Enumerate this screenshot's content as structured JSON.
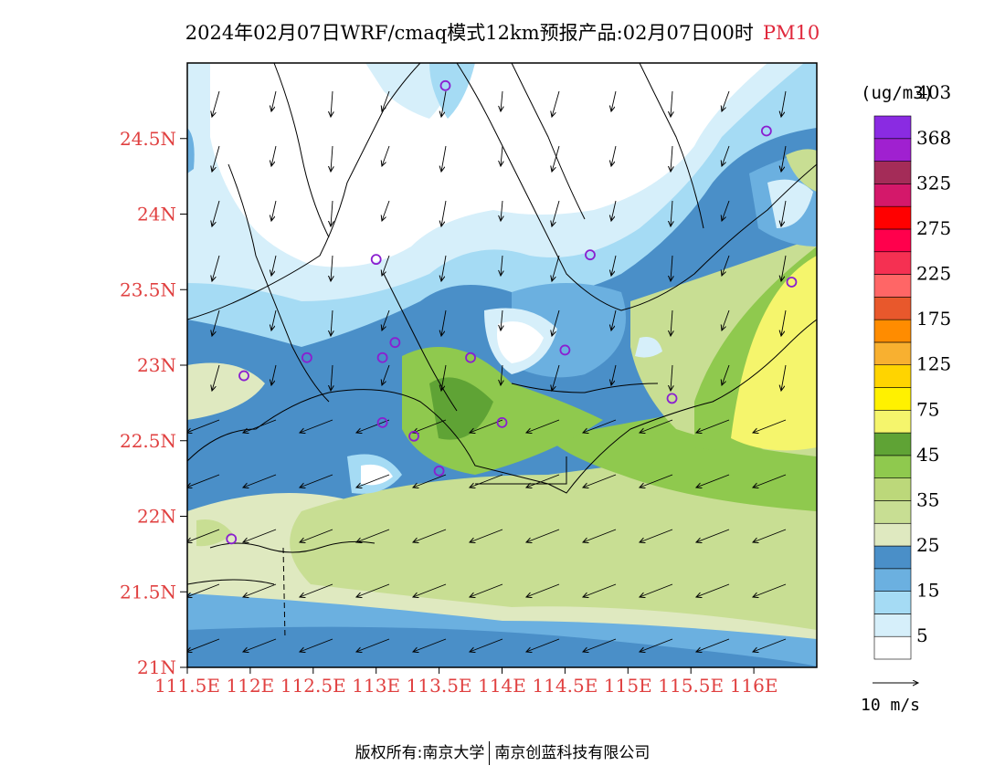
{
  "title": {
    "main": "2024年02月07日WRF/cmaq模式12km预报产品:02月07日00时",
    "pollutant": "PM10"
  },
  "map": {
    "lat_labels": [
      "24.5N",
      "24N",
      "23.5N",
      "23N",
      "22.5N",
      "22N",
      "21.5N",
      "21N"
    ],
    "lat_values": [
      24.5,
      24,
      23.5,
      23,
      22.5,
      22,
      21.5,
      21
    ],
    "lon_labels": [
      "111.5E",
      "112E",
      "112.5E",
      "113E",
      "113.5E",
      "114E",
      "114.5E",
      "115E",
      "115.5E",
      "116E"
    ],
    "lon_values": [
      111.5,
      112,
      112.5,
      113,
      113.5,
      114,
      114.5,
      115,
      115.5,
      116
    ],
    "extent": {
      "lon_min": 111.5,
      "lon_max": 116.5,
      "lat_min": 21.0,
      "lat_max": 25.0
    },
    "station_color": "#8a1fd0",
    "stations": [
      {
        "lon": 113.55,
        "lat": 24.85
      },
      {
        "lon": 116.1,
        "lat": 24.55
      },
      {
        "lon": 113.0,
        "lat": 23.7
      },
      {
        "lon": 114.7,
        "lat": 23.73
      },
      {
        "lon": 116.3,
        "lat": 23.55
      },
      {
        "lon": 112.45,
        "lat": 23.05
      },
      {
        "lon": 113.05,
        "lat": 23.05
      },
      {
        "lon": 113.15,
        "lat": 23.15
      },
      {
        "lon": 113.75,
        "lat": 23.05
      },
      {
        "lon": 114.5,
        "lat": 23.1
      },
      {
        "lon": 111.95,
        "lat": 22.93
      },
      {
        "lon": 115.35,
        "lat": 22.78
      },
      {
        "lon": 113.05,
        "lat": 22.62
      },
      {
        "lon": 113.3,
        "lat": 22.53
      },
      {
        "lon": 114.0,
        "lat": 22.62
      },
      {
        "lon": 113.5,
        "lat": 22.3
      },
      {
        "lon": 111.85,
        "lat": 21.85
      }
    ]
  },
  "colorbar": {
    "units": "(ug/m3)",
    "colors": [
      "#ffffff",
      "#d6effa",
      "#a5dbf4",
      "#6bb0e0",
      "#4a8fc8",
      "#dfe9c0",
      "#c8de93",
      "#bcd87a",
      "#8fc94e",
      "#5fa335",
      "#f5f56c",
      "#fff100",
      "#ffd400",
      "#f8b030",
      "#ff8c00",
      "#e8582c",
      "#ff6666",
      "#f53052",
      "#ff004c",
      "#ff0000",
      "#d4186a",
      "#a42c58",
      "#a020d0",
      "#8a2be2"
    ],
    "labels": [
      "5",
      "15",
      "25",
      "35",
      "45",
      "75",
      "125",
      "175",
      "225",
      "275",
      "325",
      "368",
      "403"
    ]
  },
  "vector_legend": {
    "label": "10 m/s"
  },
  "footer": {
    "left": "版权所有:南京大学",
    "right": "南京创蓝科技有限公司"
  }
}
